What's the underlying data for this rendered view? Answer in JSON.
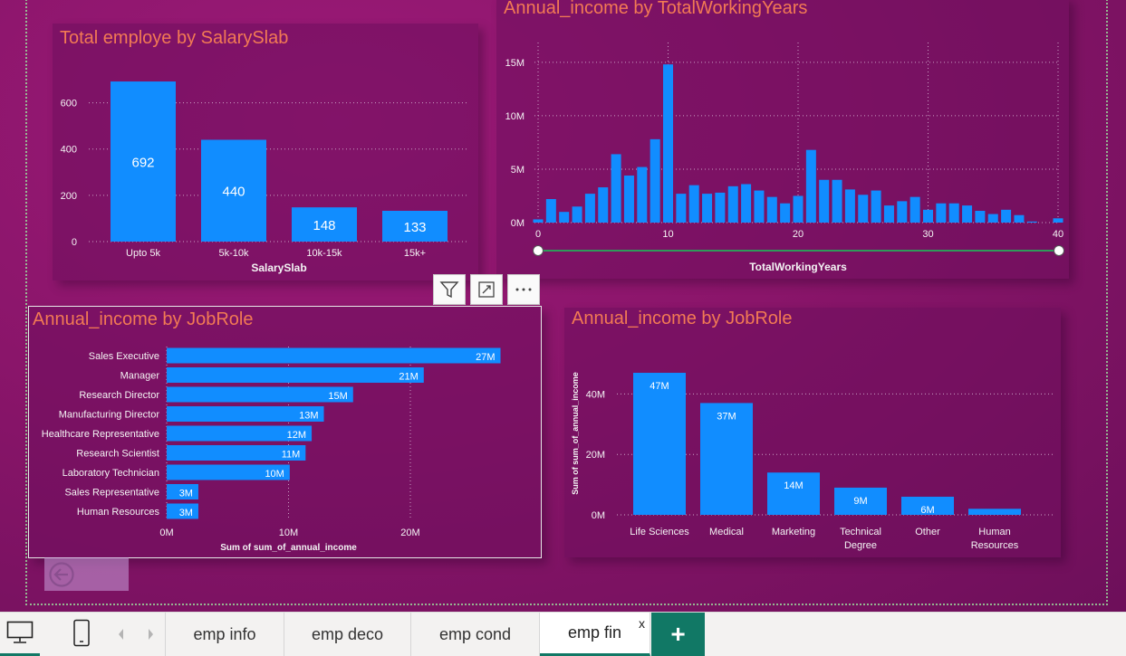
{
  "panels": {
    "salary_slab": {
      "title": "Total employe by SalarySlab"
    },
    "working_years": {
      "title": "Annual_income by TotalWorkingYears"
    },
    "jobrole_bar": {
      "title": "Annual_income by JobRole"
    },
    "jobrole_column": {
      "title": "Annual_income by JobRole"
    }
  },
  "chart_data": [
    {
      "id": "salary_slab",
      "type": "bar",
      "title": "Total employe by SalarySlab",
      "xlabel": "SalarySlab",
      "ylabel": "",
      "categories": [
        "Upto 5k",
        "5k-10k",
        "10k-15k",
        "15k+"
      ],
      "values": [
        692,
        440,
        148,
        133
      ],
      "data_labels": [
        "692",
        "440",
        "148",
        "133"
      ],
      "ylim": [
        0,
        700
      ],
      "yticks": [
        0,
        200,
        400,
        600
      ],
      "grid": true,
      "bar_color": "#118dff"
    },
    {
      "id": "working_years",
      "type": "bar",
      "title": "Annual_income by TotalWorkingYears",
      "xlabel": "TotalWorkingYears",
      "ylabel": "",
      "x": [
        0,
        1,
        2,
        3,
        4,
        5,
        6,
        7,
        8,
        9,
        10,
        11,
        12,
        13,
        14,
        15,
        16,
        17,
        18,
        19,
        20,
        21,
        22,
        23,
        24,
        25,
        26,
        27,
        28,
        29,
        30,
        31,
        32,
        33,
        34,
        35,
        36,
        37,
        38,
        39,
        40
      ],
      "values": [
        0.3,
        2.2,
        1.0,
        1.5,
        2.7,
        3.3,
        6.4,
        4.4,
        5.2,
        7.8,
        14.8,
        2.7,
        3.5,
        2.7,
        2.8,
        3.4,
        3.6,
        3.0,
        2.4,
        1.8,
        2.5,
        6.8,
        4.0,
        4.0,
        3.1,
        2.6,
        3.0,
        1.6,
        2.0,
        2.4,
        1.2,
        1.8,
        1.8,
        1.6,
        1.1,
        0.8,
        1.2,
        0.7,
        0.1,
        0,
        0.4
      ],
      "xticks": [
        "0",
        "10",
        "20",
        "30",
        "40"
      ],
      "yticks": [
        "0M",
        "5M",
        "10M",
        "15M"
      ],
      "ylim": [
        0,
        16
      ],
      "unit": "M",
      "grid": true,
      "bar_color": "#118dff"
    },
    {
      "id": "jobrole_bar",
      "type": "bar",
      "orientation": "horizontal",
      "title": "Annual_income by JobRole",
      "xlabel": "Sum of sum_of_annual_income",
      "ylabel": "",
      "categories": [
        "Sales Executive",
        "Manager",
        "Research Director",
        "Manufacturing Director",
        "Healthcare Representative",
        "Research Scientist",
        "Laboratory Technician",
        "Sales Representative",
        "Human Resources"
      ],
      "values": [
        27.4,
        21.1,
        15.3,
        12.9,
        11.9,
        11.4,
        10.1,
        2.6,
        2.6
      ],
      "data_labels": [
        "27M",
        "21M",
        "15M",
        "13M",
        "12M",
        "11M",
        "10M",
        "3M",
        "3M"
      ],
      "xticks": [
        "0M",
        "10M",
        "20M"
      ],
      "xlim": [
        0,
        30
      ],
      "grid": true,
      "bar_color": "#118dff"
    },
    {
      "id": "jobrole_column",
      "type": "bar",
      "title": "Annual_income by JobRole",
      "xlabel": "",
      "ylabel": "Sum of sum_of_annual_income",
      "categories": [
        "Life Sciences",
        "Medical",
        "Marketing",
        "Technical Degree",
        "Other",
        "Human Resources"
      ],
      "category_lines": [
        [
          "Life Sciences"
        ],
        [
          "Medical"
        ],
        [
          "Marketing"
        ],
        [
          "Technical",
          "Degree"
        ],
        [
          "Other"
        ],
        [
          "Human",
          "Resources"
        ]
      ],
      "values": [
        47,
        37,
        14,
        9,
        6,
        2
      ],
      "data_labels": [
        "47M",
        "37M",
        "14M",
        "9M",
        "6M",
        ""
      ],
      "yticks": [
        "0M",
        "20M",
        "40M"
      ],
      "ylim": [
        0,
        50
      ],
      "grid": true,
      "bar_color": "#118dff"
    }
  ],
  "tabs": [
    {
      "label": "emp info",
      "active": false
    },
    {
      "label": "emp deco",
      "active": false
    },
    {
      "label": "emp cond",
      "active": false
    },
    {
      "label": "emp fin",
      "active": true,
      "close": "x"
    }
  ],
  "add_tab_label": "+",
  "colors": {
    "accent": "#117865",
    "title": "#f27a54",
    "bar": "#118dff"
  }
}
